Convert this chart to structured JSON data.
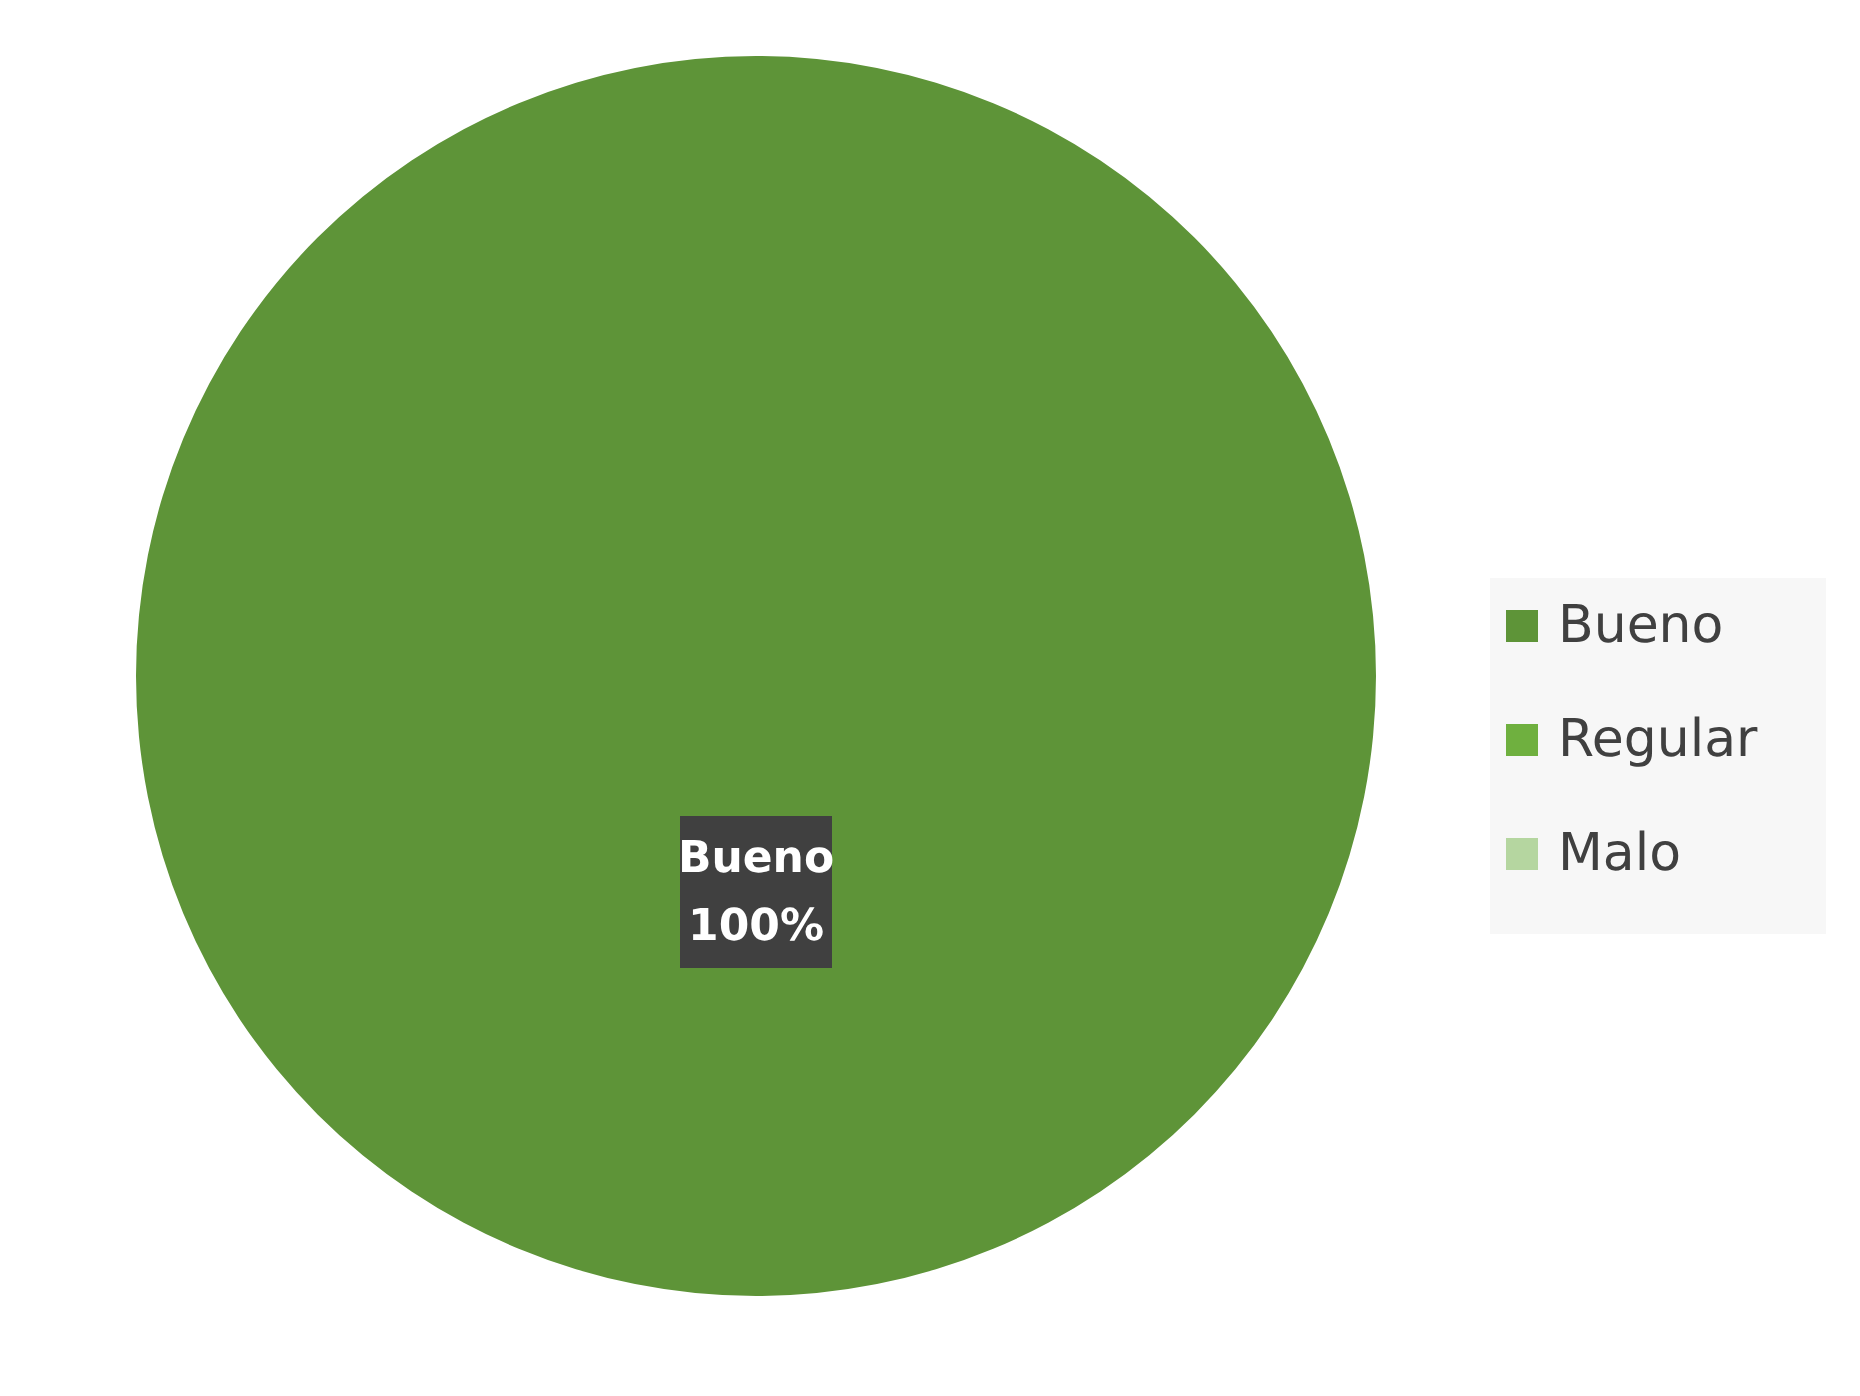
{
  "chart_data": {
    "type": "pie",
    "categories": [
      "Bueno",
      "Regular",
      "Malo"
    ],
    "values": [
      100,
      0,
      0
    ],
    "colors": [
      "#5e9438",
      "#6fb03f",
      "#b5d6a0"
    ],
    "value_labels": [
      "100%",
      null,
      null
    ],
    "legend": "right"
  }
}
